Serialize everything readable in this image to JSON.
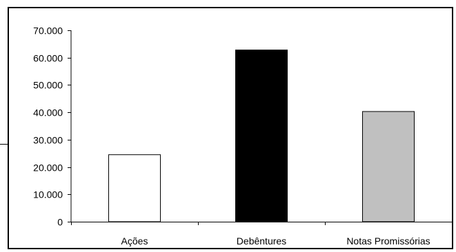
{
  "chart_data": {
    "type": "bar",
    "categories": [
      "Ações",
      "Debêntures",
      "Notas Promissórias"
    ],
    "values": [
      24500,
      62800,
      40300
    ],
    "colors": [
      "#ffffff",
      "#000000",
      "#c0c0c0"
    ],
    "ylim": [
      0,
      70000
    ],
    "yticks": [
      0,
      10000,
      20000,
      30000,
      40000,
      50000,
      60000,
      70000
    ],
    "ytick_labels": [
      "0",
      "10.000",
      "20.000",
      "30.000",
      "40.000",
      "50.000",
      "60.000",
      "70.000"
    ],
    "grid": false,
    "legend": "none"
  }
}
